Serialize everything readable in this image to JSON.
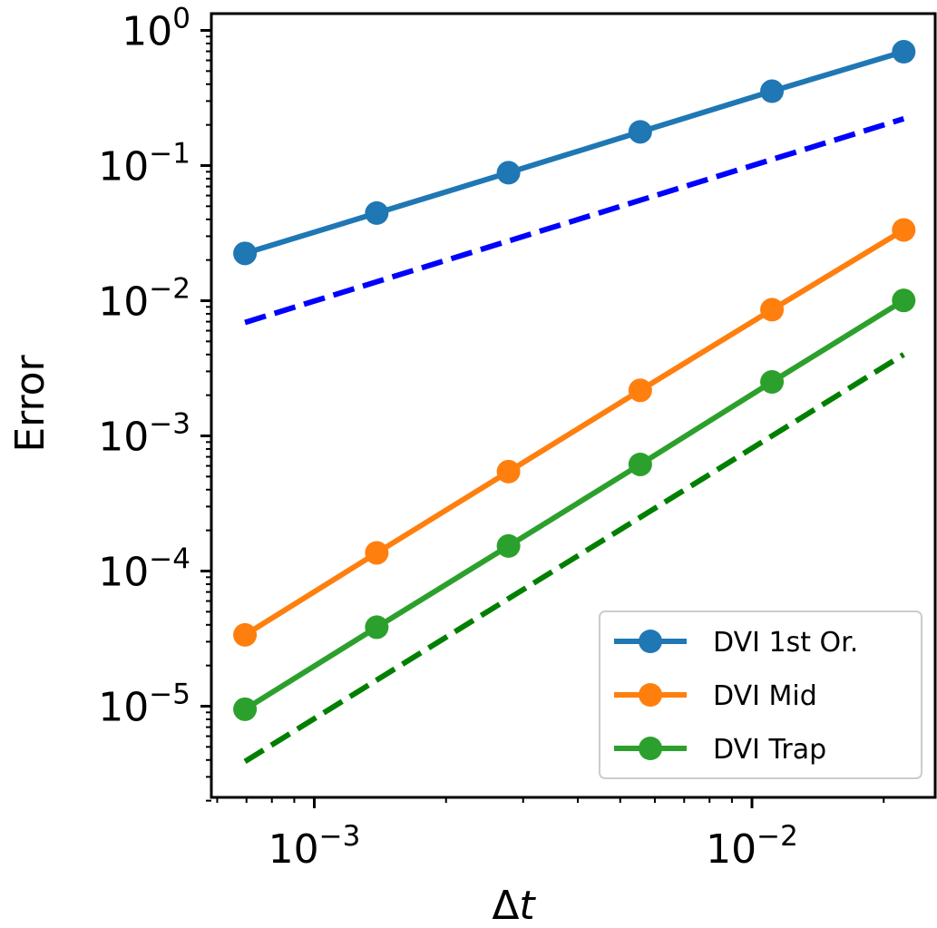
{
  "chart_data": {
    "type": "line",
    "xscale": "log",
    "yscale": "log",
    "xlim": [
      0.0006,
      0.025
    ],
    "ylim": [
      1.8e-06,
      1.1
    ],
    "xlabel_base": "Δ",
    "xlabel_var": "t",
    "ylabel": "Error",
    "x_ticks": [
      {
        "value": 0.001,
        "base": "10",
        "exp": "−3"
      },
      {
        "value": 0.01,
        "base": "10",
        "exp": "−2"
      }
    ],
    "y_ticks": [
      {
        "value": 1,
        "base": "10",
        "exp": "0"
      },
      {
        "value": 0.1,
        "base": "10",
        "exp": "−1"
      },
      {
        "value": 0.01,
        "base": "10",
        "exp": "−2"
      },
      {
        "value": 0.001,
        "base": "10",
        "exp": "−3"
      },
      {
        "value": 0.0001,
        "base": "10",
        "exp": "−4"
      },
      {
        "value": 1e-05,
        "base": "10",
        "exp": "−5"
      }
    ],
    "x": [
      0.0006944,
      0.001389,
      0.002778,
      0.005556,
      0.01111,
      0.02222
    ],
    "series": [
      {
        "name": "DVI 1st Or.",
        "color": "#1f77b4",
        "values": [
          0.0224,
          0.0445,
          0.0885,
          0.1775,
          0.355,
          0.695
        ]
      },
      {
        "name": "DVI Mid",
        "color": "#ff7f0e",
        "values": [
          3.37e-05,
          0.0001363,
          0.000544,
          0.002172,
          0.00858,
          0.0334
        ]
      },
      {
        "name": "DVI Trap",
        "color": "#2ca02c",
        "values": [
          9.5e-06,
          3.84e-05,
          0.0001532,
          0.000615,
          0.00251,
          0.01005
        ]
      }
    ],
    "reference_lines": [
      {
        "style": "dashed",
        "color": "#0000ff",
        "x": [
          0.0006944,
          0.02222
        ],
        "values": [
          0.0069,
          0.222
        ]
      },
      {
        "style": "dashed",
        "color": "#007f00",
        "x": [
          0.0006944,
          0.02222
        ],
        "values": [
          3.9e-06,
          0.004
        ]
      }
    ],
    "legend_position": "lower right",
    "grid": false
  }
}
